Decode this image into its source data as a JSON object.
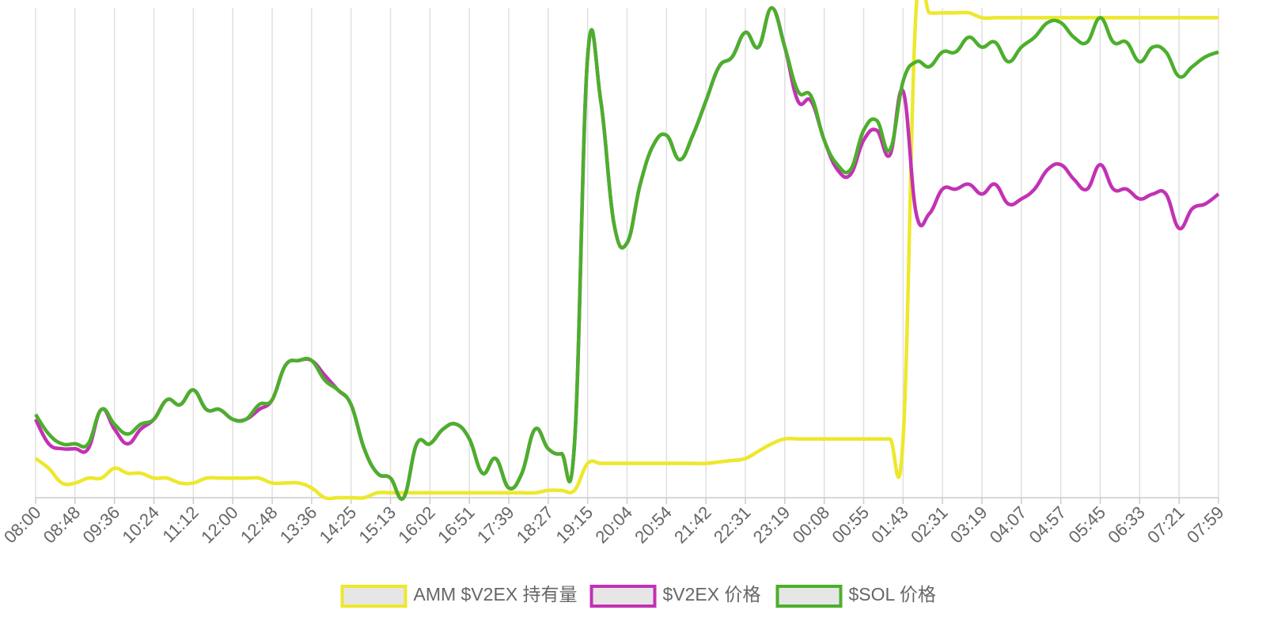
{
  "chart_data": {
    "type": "line",
    "categories": [
      "08:00",
      null,
      null,
      "08:48",
      null,
      null,
      "09:36",
      null,
      null,
      "10:24",
      null,
      null,
      "11:12",
      null,
      null,
      "12:00",
      null,
      null,
      "12:48",
      null,
      null,
      "13:36",
      null,
      null,
      "14:25",
      null,
      null,
      "15:13",
      null,
      null,
      "16:02",
      null,
      null,
      "16:51",
      null,
      null,
      "17:39",
      null,
      null,
      "18:27",
      null,
      null,
      "19:15",
      null,
      null,
      "20:04",
      null,
      null,
      "20:54",
      null,
      null,
      "21:42",
      null,
      null,
      "22:31",
      null,
      null,
      "23:19",
      null,
      null,
      "00:08",
      null,
      null,
      "00:55",
      null,
      null,
      "01:43",
      null,
      null,
      "02:31",
      null,
      null,
      "03:19",
      null,
      null,
      "04:07",
      null,
      null,
      "04:57",
      null,
      null,
      "05:45",
      null,
      null,
      "06:33",
      null,
      null,
      "07:21",
      null,
      null,
      "07:59"
    ],
    "ylim": [
      0,
      100
    ],
    "series": [
      {
        "name": "AMM $V2EX 持有量",
        "color": "#ede82c",
        "values": [
          8,
          6,
          3,
          3,
          4,
          4,
          6,
          5,
          5,
          4,
          4,
          3,
          3,
          4,
          4,
          4,
          4,
          4,
          3,
          3,
          3,
          2,
          0,
          0,
          0,
          0,
          1,
          1,
          1,
          1,
          1,
          1,
          1,
          1,
          1,
          1,
          1,
          1,
          1,
          1.5,
          1.5,
          1.5,
          7,
          7,
          7,
          7,
          7,
          7,
          7,
          7,
          7,
          7,
          7.3,
          7.6,
          8,
          9.5,
          11,
          12,
          12,
          12,
          12,
          12,
          12,
          12,
          12,
          12,
          12,
          100,
          99,
          99,
          99,
          99,
          98,
          98,
          98,
          98,
          98,
          98,
          98,
          98,
          98,
          98,
          98,
          98,
          98,
          98,
          98,
          98,
          98,
          98,
          98
        ]
      },
      {
        "name": "$V2EX 价格",
        "color": "#c232b4",
        "values": [
          16,
          11,
          10,
          10,
          10,
          18,
          14,
          11,
          14,
          16,
          20,
          19,
          22,
          18,
          18,
          16,
          16,
          18,
          20,
          27,
          28,
          28,
          25,
          22,
          19,
          10,
          5,
          4,
          0,
          11,
          11,
          14,
          15,
          12,
          5,
          8,
          2,
          5,
          14,
          10,
          9,
          11,
          90,
          81,
          56,
          52,
          64,
          72,
          74,
          69,
          74,
          81,
          88,
          90,
          95,
          92,
          100,
          92,
          81,
          81,
          73,
          67,
          66,
          73,
          75,
          70,
          83,
          58,
          58,
          63,
          63,
          64,
          62,
          64,
          60,
          61,
          63,
          67,
          68,
          65,
          63,
          68,
          63,
          63,
          61,
          62,
          62,
          55,
          59,
          60,
          62
        ]
      },
      {
        "name": "$SOL 价格",
        "color": "#4caf2c",
        "values": [
          17,
          13,
          11,
          11,
          11,
          18,
          15,
          13,
          15,
          16,
          20,
          19,
          22,
          18,
          18,
          16,
          16,
          19,
          20,
          27,
          28,
          28,
          24,
          22,
          19,
          10,
          5,
          4,
          0,
          11,
          11,
          14,
          15,
          12,
          5,
          8,
          2,
          5,
          14,
          10,
          9,
          11,
          90,
          81,
          56,
          52,
          64,
          72,
          74,
          69,
          74,
          81,
          88,
          90,
          95,
          92,
          100,
          92,
          83,
          82,
          73,
          68,
          67,
          75,
          77,
          71,
          85,
          89,
          88,
          91,
          91,
          94,
          92,
          93,
          89,
          92,
          94,
          97,
          97,
          94,
          93,
          98,
          93,
          93,
          89,
          92,
          91,
          86,
          88,
          90,
          91
        ]
      }
    ]
  }
}
